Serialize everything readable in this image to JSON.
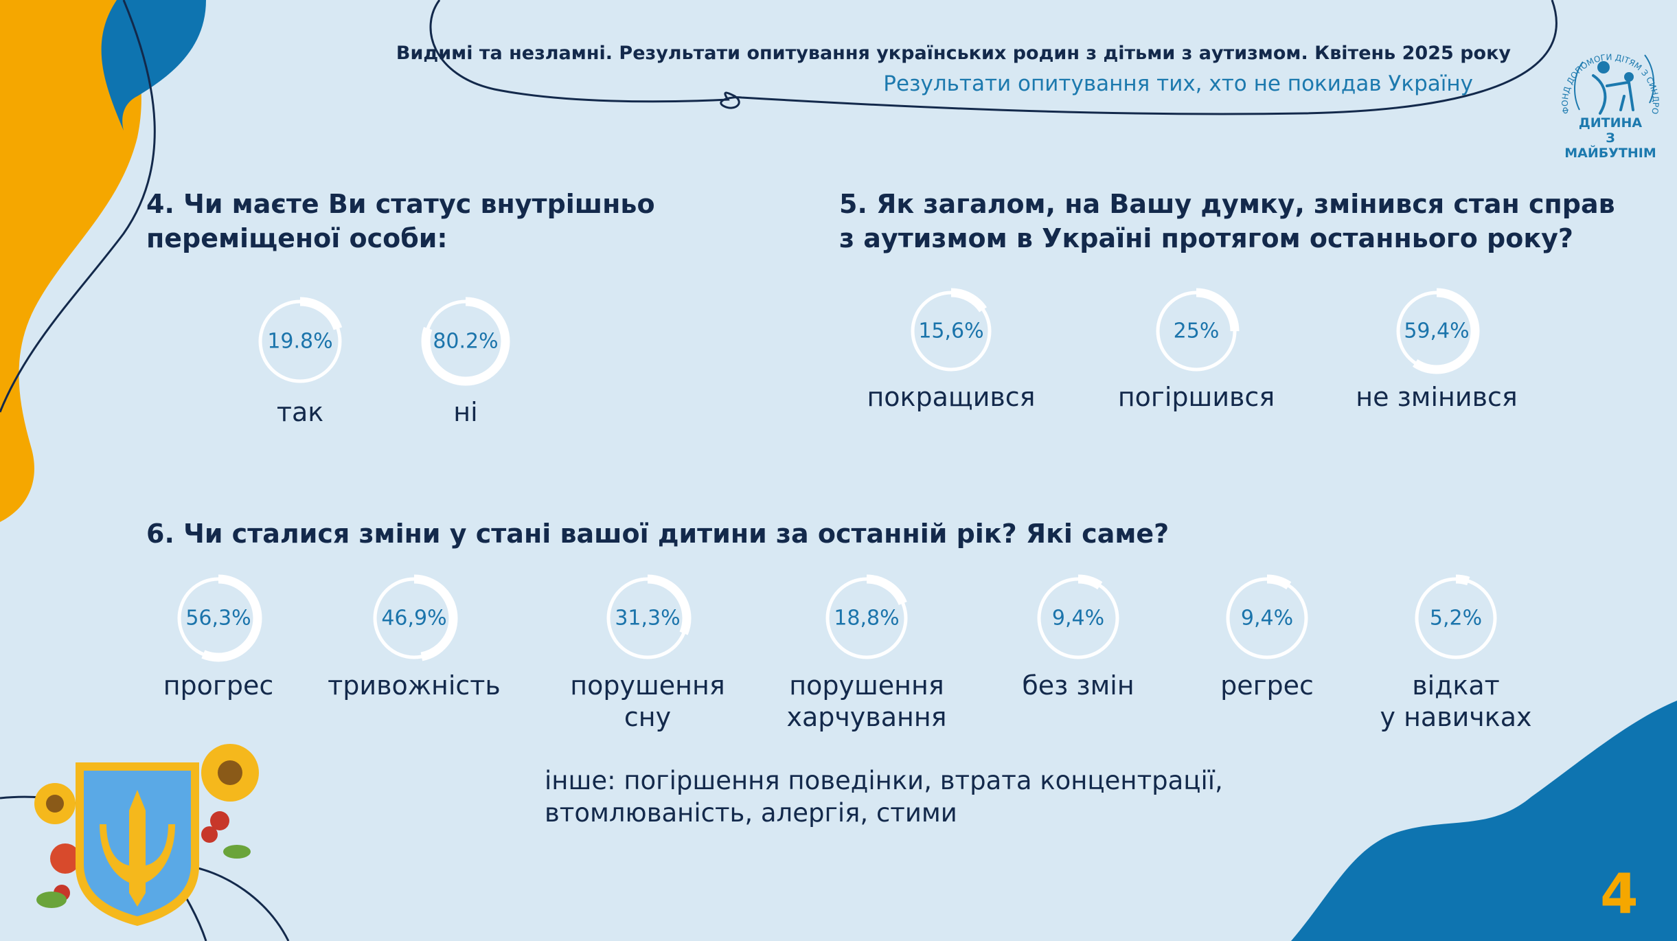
{
  "header": {
    "title": "Видимі та незламні. Результати опитування українських родин з дітьми з аутизмом. Квітень 2025 року",
    "subtitle": "Результати опитування тих, хто не покидав Україну"
  },
  "logo": {
    "line1": "ДИТИНА",
    "line2": "З МАЙБУТНІМ",
    "arc_text": "ФОНД ДОПОМОГИ ДІТЯМ З СИНДРОМОМ АУТИЗМУ"
  },
  "colors": {
    "background": "#d8e8f3",
    "ring": "#ffffff",
    "value_text": "#1b74ab",
    "heading": "#13294b",
    "accent_orange": "#f5a700",
    "accent_blue": "#0e74b0"
  },
  "questions": {
    "q4": "4. Чи маєте Ви статус внутрішньо переміщеної особи:",
    "q5": "5. Як загалом, на Вашу думку, змінився стан справ з аутизмом в Україні протягом останнього року?",
    "q6": "6. Чи сталися зміни у стані вашої дитини за останній рік? Які саме?"
  },
  "chart_data": [
    {
      "type": "pie",
      "question": "q4",
      "categories": [
        "так",
        "ні"
      ],
      "values": [
        19.8,
        80.2
      ],
      "labels": [
        "19.8%",
        "80.2%"
      ]
    },
    {
      "type": "pie",
      "question": "q5",
      "categories": [
        "покращився",
        "погіршився",
        "не змінився"
      ],
      "values": [
        15.6,
        25,
        59.4
      ],
      "labels": [
        "15,6%",
        "25%",
        "59,4%"
      ]
    },
    {
      "type": "pie",
      "question": "q6",
      "categories": [
        "прогрес",
        "тривожність",
        "порушення\nсну",
        "порушення\nхарчування",
        "без змін",
        "регрес",
        "відкат\nу навичках"
      ],
      "values": [
        56.3,
        46.9,
        31.3,
        18.8,
        9.4,
        9.4,
        5.2
      ],
      "labels": [
        "56,3%",
        "46,9%",
        "31,3%",
        "18,8%",
        "9,4%",
        "9,4%",
        "5,2%"
      ]
    }
  ],
  "note": "інше: погіршення поведінки, втрата концентрації, втомлюваність, алергія, стими",
  "page_number": "4"
}
